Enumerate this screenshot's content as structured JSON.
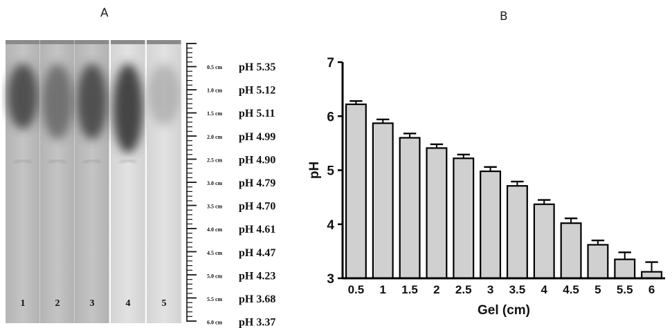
{
  "panel_a": {
    "letter": "A",
    "lanes": [
      "1",
      "2",
      "3",
      "4",
      "5"
    ],
    "markers": [
      {
        "cm": "0.5 cm",
        "ph": "pH 5.35"
      },
      {
        "cm": "1.0 cm",
        "ph": "pH 5.12"
      },
      {
        "cm": "1.5 cm",
        "ph": "pH 5.11"
      },
      {
        "cm": "2.0 cm",
        "ph": "pH 4.99"
      },
      {
        "cm": "2.5 cm",
        "ph": "pH 4.90"
      },
      {
        "cm": "3.0 cm",
        "ph": "pH 4.79"
      },
      {
        "cm": "3.5 cm",
        "ph": "pH 4.70"
      },
      {
        "cm": "4.0 cm",
        "ph": "pH 4.61"
      },
      {
        "cm": "4.5 cm",
        "ph": "pH 4.47"
      },
      {
        "cm": "5.0 cm",
        "ph": "pH 4.23"
      },
      {
        "cm": "5.5 cm",
        "ph": "pH 3.68"
      },
      {
        "cm": "6.0 cm",
        "ph": "pH 3.37"
      }
    ]
  },
  "chart_data": {
    "type": "bar",
    "panel_letter": "B",
    "categories": [
      "0.5",
      "1",
      "1.5",
      "2",
      "2.5",
      "3",
      "3.5",
      "4",
      "4.5",
      "5",
      "5.5",
      "6"
    ],
    "values": [
      6.22,
      5.87,
      5.6,
      5.41,
      5.22,
      4.98,
      4.71,
      4.37,
      4.02,
      3.62,
      3.35,
      3.12
    ],
    "errors": [
      0.06,
      0.07,
      0.08,
      0.07,
      0.07,
      0.08,
      0.08,
      0.08,
      0.09,
      0.08,
      0.13,
      0.18
    ],
    "title": "",
    "xlabel": "Gel (cm)",
    "ylabel": "pH",
    "ylim": [
      3,
      7
    ],
    "yticks": [
      "3",
      "4",
      "5",
      "6",
      "7"
    ],
    "grid": false,
    "bar_color": "#d0d0d0",
    "edge_color": "#000000"
  }
}
